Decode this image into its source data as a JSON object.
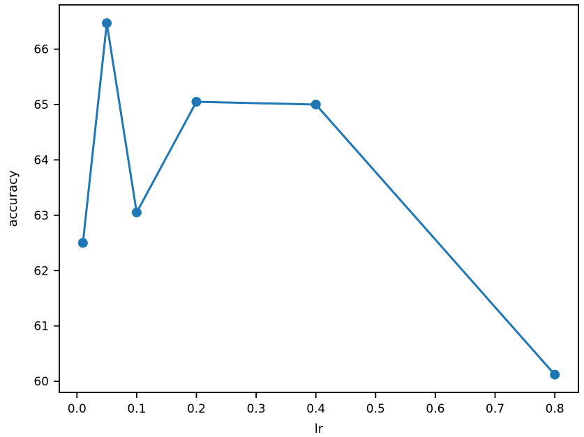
{
  "chart_data": {
    "type": "line",
    "title": "",
    "xlabel": "lr",
    "ylabel": "accuracy",
    "x": [
      0.01,
      0.05,
      0.1,
      0.2,
      0.4,
      0.8
    ],
    "series": [
      {
        "name": "accuracy",
        "values": [
          62.5,
          66.47,
          63.05,
          65.05,
          65.0,
          60.12
        ]
      }
    ],
    "xticks": [
      0.0,
      0.1,
      0.2,
      0.3,
      0.4,
      0.5,
      0.6,
      0.7,
      0.8
    ],
    "xtick_labels": [
      "0.0",
      "0.1",
      "0.2",
      "0.3",
      "0.4",
      "0.5",
      "0.6",
      "0.7",
      "0.8"
    ],
    "yticks": [
      60,
      61,
      62,
      63,
      64,
      65,
      66
    ],
    "ytick_labels": [
      "60",
      "61",
      "62",
      "63",
      "64",
      "65",
      "66"
    ],
    "xlim": [
      -0.0295,
      0.8395
    ],
    "ylim": [
      59.8,
      66.8
    ],
    "grid": false,
    "legend": null,
    "line_color": "#1f77b4",
    "marker": "o",
    "marker_color": "#1f77b4",
    "spine_color": "#000000"
  }
}
